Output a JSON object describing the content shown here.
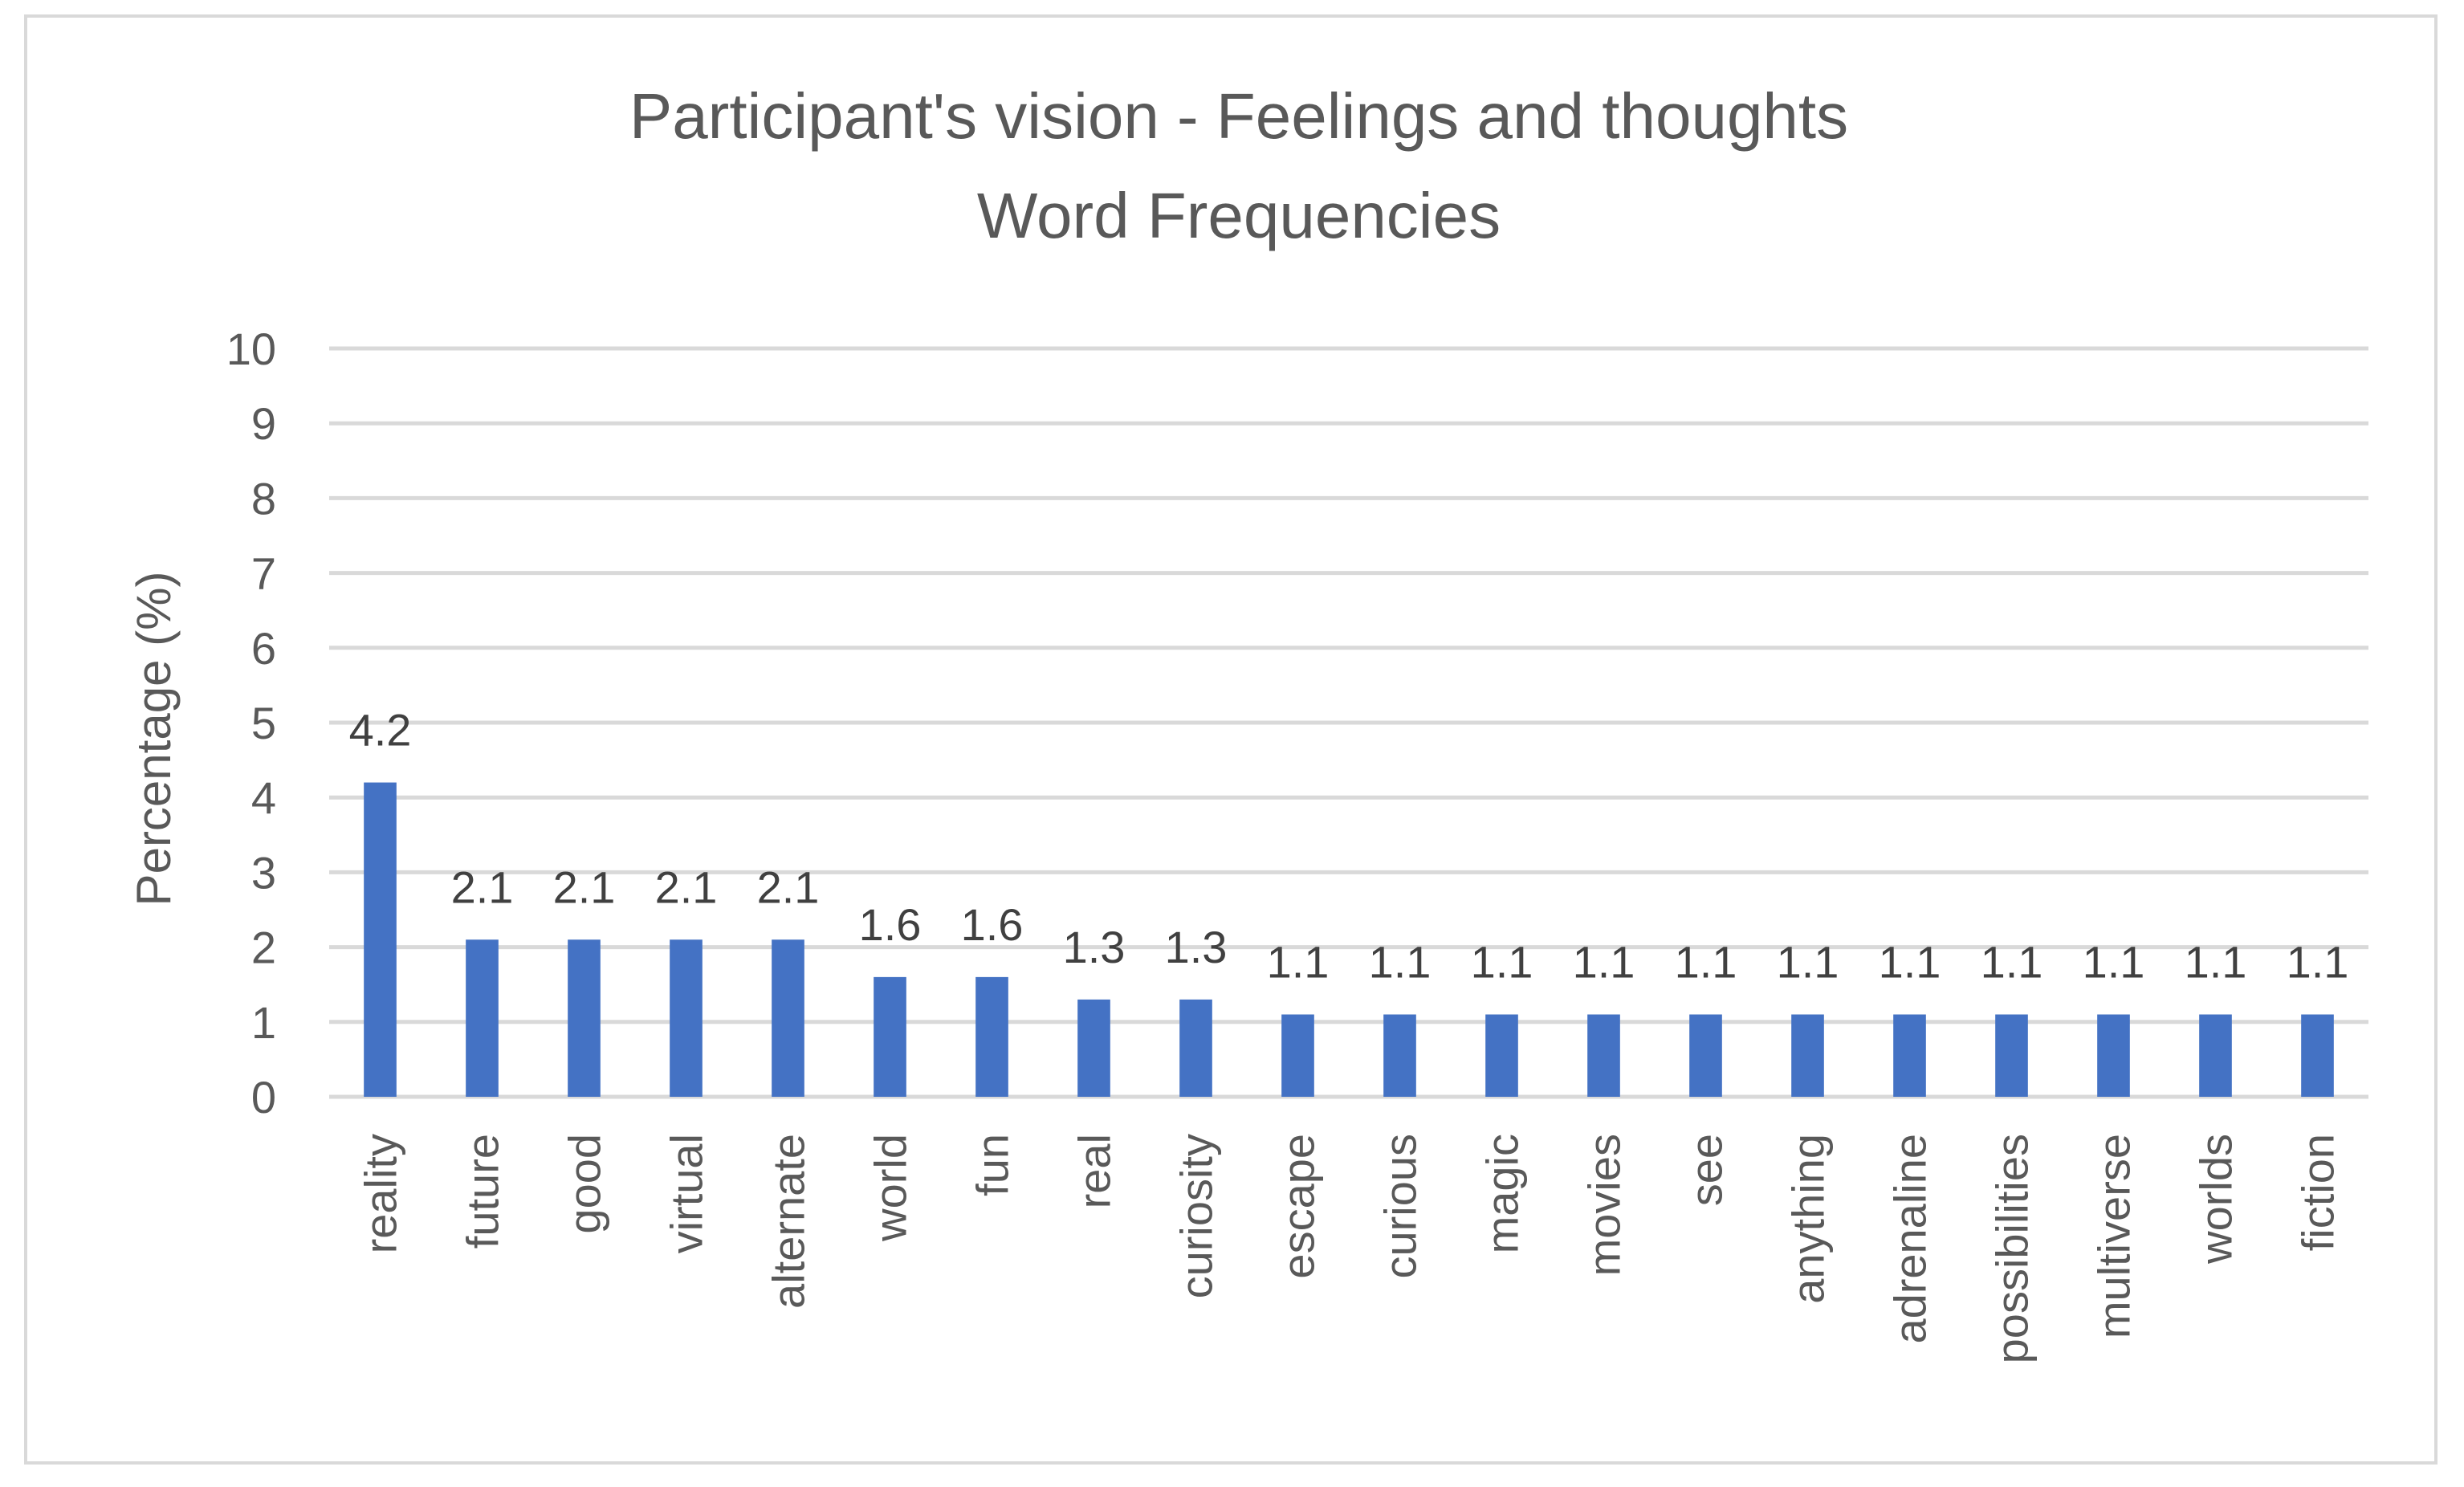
{
  "chart_data": {
    "type": "bar",
    "title_lines": [
      "Participant's vision - Feelings and thoughts",
      "Word Frequencies"
    ],
    "xlabel": "",
    "ylabel": "Percentage (%)",
    "ylim": [
      0,
      10
    ],
    "yticks": [
      "0",
      "1",
      "2",
      "3",
      "4",
      "5",
      "6",
      "7",
      "8",
      "9",
      "10"
    ],
    "grid": true,
    "legend": "none",
    "bar_color": "#4472c4",
    "categories": [
      "reality",
      "future",
      "good",
      "virtual",
      "alternate",
      "world",
      "fun",
      "real",
      "curiosity",
      "escape",
      "curious",
      "magic",
      "movies",
      "see",
      "anything",
      "adrenaline",
      "possibilities",
      "multiverse",
      "worlds",
      "fiction"
    ],
    "values": [
      4.2,
      2.1,
      2.1,
      2.1,
      2.1,
      1.6,
      1.6,
      1.3,
      1.3,
      1.1,
      1.1,
      1.1,
      1.1,
      1.1,
      1.1,
      1.1,
      1.1,
      1.1,
      1.1,
      1.1
    ],
    "value_labels": [
      "4.2",
      "2.1",
      "2.1",
      "2.1",
      "2.1",
      "1.6",
      "1.6",
      "1.3",
      "1.3",
      "1.1",
      "1.1",
      "1.1",
      "1.1",
      "1.1",
      "1.1",
      "1.1",
      "1.1",
      "1.1",
      "1.1",
      "1.1"
    ]
  }
}
